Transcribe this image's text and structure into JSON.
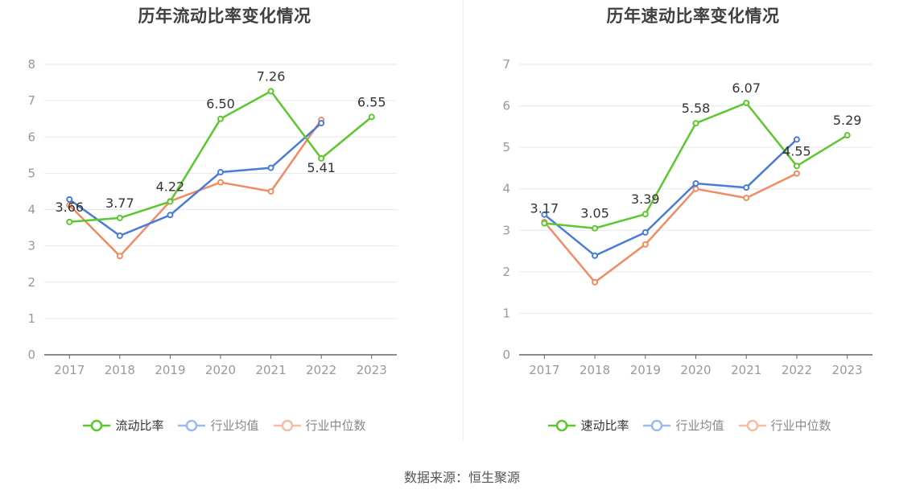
{
  "source": "数据来源：恒生聚源",
  "colors": {
    "primary": "#5cc72e",
    "avg": "#4b7bd9",
    "median": "#f28b62",
    "grid": "#e6e6ef",
    "axis": "#666666",
    "tick_text": "#999999",
    "label_text": "#333333"
  },
  "chart_data": [
    {
      "type": "line",
      "title": "历年流动比率变化情况",
      "categories": [
        "2017",
        "2018",
        "2019",
        "2020",
        "2021",
        "2022",
        "2023"
      ],
      "ylim": [
        0,
        8
      ],
      "yticks": [
        "0",
        "1",
        "2",
        "3",
        "4",
        "5",
        "6",
        "7",
        "8"
      ],
      "grid": true,
      "legend_position": "bottom",
      "series": [
        {
          "name": "流动比率",
          "key": "primary",
          "values": [
            3.66,
            3.77,
            4.22,
            6.5,
            7.26,
            5.41,
            6.55
          ],
          "labels": [
            "3.66",
            "3.77",
            "4.22",
            "6.50",
            "7.26",
            "5.41",
            "6.55"
          ]
        },
        {
          "name": "行业均值",
          "key": "avg",
          "values": [
            4.28,
            3.28,
            3.85,
            5.03,
            5.15,
            6.38,
            null
          ]
        },
        {
          "name": "行业中位数",
          "key": "median",
          "values": [
            4.12,
            2.72,
            4.23,
            4.75,
            4.5,
            6.47,
            null
          ]
        }
      ]
    },
    {
      "type": "line",
      "title": "历年速动比率变化情况",
      "categories": [
        "2017",
        "2018",
        "2019",
        "2020",
        "2021",
        "2022",
        "2023"
      ],
      "ylim": [
        0,
        7
      ],
      "yticks": [
        "0",
        "1",
        "2",
        "3",
        "4",
        "5",
        "6",
        "7"
      ],
      "grid": true,
      "legend_position": "bottom",
      "series": [
        {
          "name": "速动比率",
          "key": "primary",
          "values": [
            3.17,
            3.05,
            3.39,
            5.58,
            6.07,
            4.55,
            5.29
          ],
          "labels": [
            "3.17",
            "3.05",
            "3.39",
            "5.58",
            "6.07",
            "4.55",
            "5.29"
          ]
        },
        {
          "name": "行业均值",
          "key": "avg",
          "values": [
            3.38,
            2.39,
            2.95,
            4.13,
            4.03,
            5.19,
            null
          ]
        },
        {
          "name": "行业中位数",
          "key": "median",
          "values": [
            3.2,
            1.75,
            2.66,
            4.0,
            3.78,
            4.37,
            null
          ]
        }
      ]
    }
  ]
}
